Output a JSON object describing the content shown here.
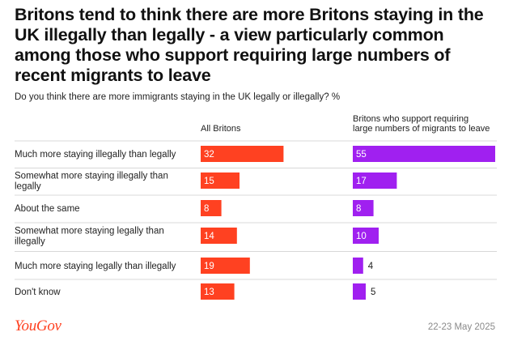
{
  "header": {
    "title": "Britons tend to think there are more Britons staying in the UK illegally than legally - a view particularly common among those who support requiring large numbers of recent migrants to leave",
    "question": "Do you think there are more immigrants staying in the UK legally or illegally? %"
  },
  "footer": {
    "logo": "YouGov",
    "date": "22-23 May 2025"
  },
  "colors": {
    "all_britons": "#ff4121",
    "supporters": "#a020f0",
    "divider": "#d8d8d8",
    "logo": "#ff4121"
  },
  "chart_data": {
    "type": "bar",
    "orientation": "horizontal",
    "unit": "%",
    "categories": [
      "Much more staying illegally than legally",
      "Somewhat more staying illegally than legally",
      "About the same",
      "Somewhat more staying legally than illegally",
      "Much more staying legally than illegally",
      "Don't know"
    ],
    "series": [
      {
        "name": "All Britons",
        "values": [
          32,
          15,
          8,
          14,
          19,
          13
        ]
      },
      {
        "name": "Britons who support requiring large numbers of migrants to leave",
        "values": [
          55,
          17,
          8,
          10,
          4,
          5
        ]
      }
    ],
    "xlim": [
      0,
      55
    ]
  }
}
